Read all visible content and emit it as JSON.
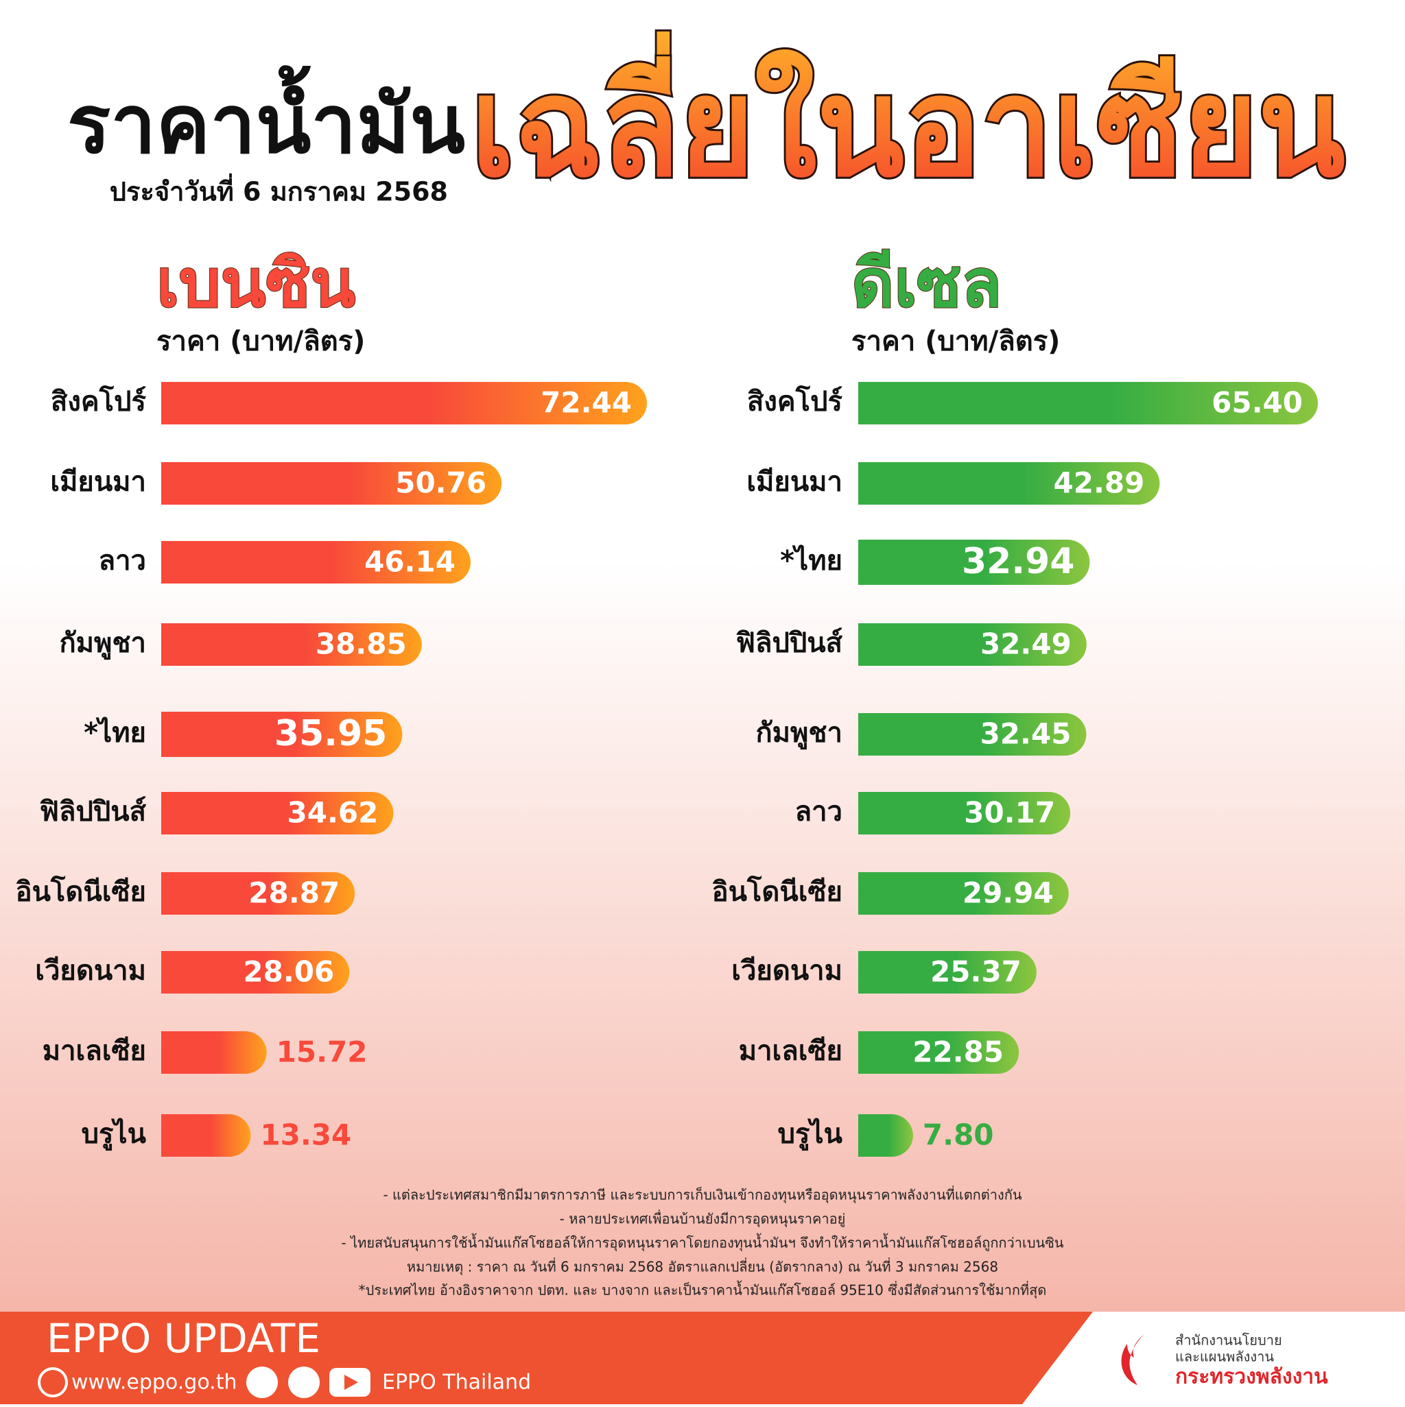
{
  "header": {
    "title": "ราคาน้ำมัน",
    "highlight_title": "เฉลี่ยในอาเซียน",
    "subtitle": "ประจำวันที่  6 มกราคม 2568"
  },
  "chart_data": [
    {
      "type": "bar",
      "orientation": "horizontal",
      "title": "เบนซิน",
      "subtitle": "ราคา (บาท/ลิตร)",
      "categories": [
        "สิงคโปร์",
        "เมียนมา",
        "ลาว",
        "กัมพูชา",
        "*ไทย",
        "ฟิลิปปินส์",
        "อินโดนีเซีย",
        "เวียดนาม",
        "มาเลเซีย",
        "บรูไน"
      ],
      "values": [
        72.44,
        50.76,
        46.14,
        38.85,
        35.95,
        34.62,
        28.87,
        28.06,
        15.72,
        13.34
      ],
      "value_labels": [
        "72.44",
        "50.76",
        "46.14",
        "38.85",
        "35.95",
        "34.62",
        "28.87",
        "28.06",
        "15.72",
        "13.34"
      ],
      "color": "#f8493b",
      "color_end": "#ffa21c",
      "highlight_index": 4,
      "highlight_color": "#e8151b"
    },
    {
      "type": "bar",
      "orientation": "horizontal",
      "title": "ดีเซล",
      "subtitle": "ราคา (บาท/ลิตร)",
      "categories": [
        "สิงคโปร์",
        "เมียนมา",
        "*ไทย",
        "ฟิลิปปินส์",
        "กัมพูชา",
        "ลาว",
        "อินโดนีเซีย",
        "เวียดนาม",
        "มาเลเซีย",
        "บรูไน"
      ],
      "values": [
        65.4,
        42.89,
        32.94,
        32.49,
        32.45,
        30.17,
        29.94,
        25.37,
        22.85,
        7.8
      ],
      "value_labels": [
        "65.40",
        "42.89",
        "32.94",
        "32.49",
        "32.45",
        "30.17",
        "29.94",
        "25.37",
        "22.85",
        "7.80"
      ],
      "color": "#36ad43",
      "color_end": "#8cc63f",
      "highlight_index": 2,
      "highlight_color": "#e8151b"
    }
  ],
  "notes": [
    "- แต่ละประเทศสมาชิกมีมาตรการภาษี และระบบการเก็บเงินเข้ากองทุนหรืออุดหนุนราคาพลังงานที่แตกต่างกัน",
    "- หลายประเทศเพื่อนบ้านยังมีการอุดหนุนราคาอยู่",
    "- ไทยสนับสนุนการใช้น้ำมันแก๊สโซฮอล์ให้การอุดหนุนราคาโดยกองทุนน้ำมันฯ จึงทำให้ราคาน้ำมันแก๊สโซฮอล์ถูกกว่าเบนซิน",
    "หมายเหตุ :   ราคา ณ วันที่ 6 มกราคม 2568 อัตราแลกเปลี่ยน (อัตรากลาง) ณ วันที่ 3 มกราคม 2568",
    "*ประเทศไทย อ้างอิงราคาจาก ปตท. และ บางจาก และเป็นราคาน้ำมันแก๊สโซฮอล์ 95E10 ซึ่งมีสัดส่วนการใช้มากที่สุด"
  ],
  "footer": {
    "brand": "EPPO UPDATE",
    "website": "www.eppo.go.th",
    "social": "EPPO Thailand",
    "org": [
      "สำนักงานนโยบาย",
      "และแผนพลังงาน",
      "กระทรวงพลังงาน"
    ]
  }
}
